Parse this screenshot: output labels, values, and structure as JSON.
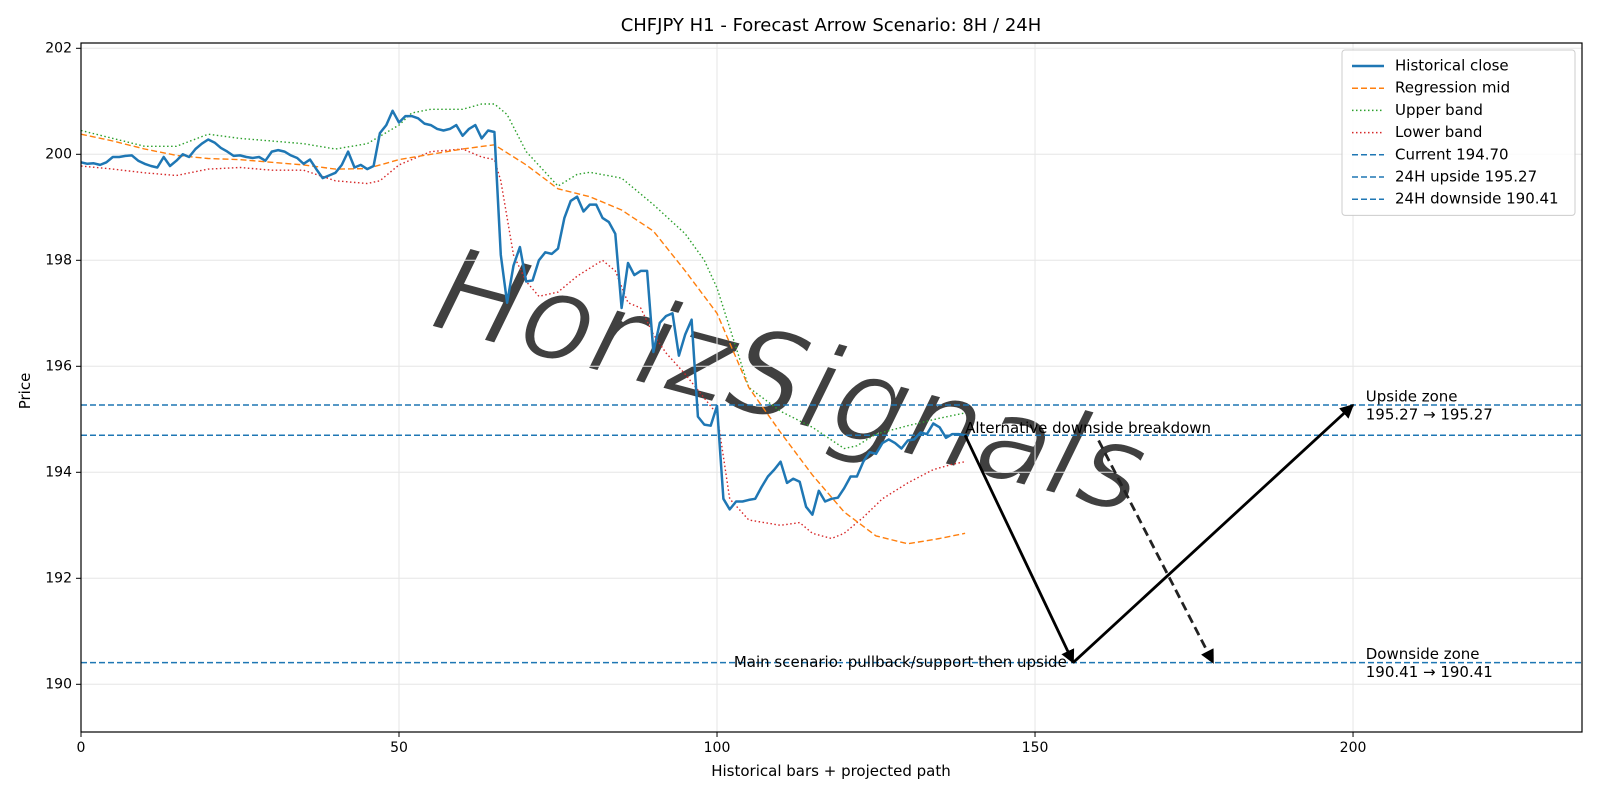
{
  "chart_data": {
    "type": "line",
    "title": "CHFJPY H1 - Forecast Arrow Scenario: 8H / 24H",
    "xlabel": "Historical bars + projected path",
    "ylabel": "Price",
    "xlim": [
      0,
      236
    ],
    "ylim": [
      189.1,
      202.1
    ],
    "xticks": [
      0,
      50,
      100,
      150,
      200
    ],
    "yticks": [
      190,
      192,
      194,
      196,
      198,
      200,
      202
    ],
    "grid": true,
    "legend_position": "top-right",
    "watermark": "HorizSignals",
    "series": [
      {
        "name": "Historical close",
        "color": "#1f77b4",
        "style": "solid",
        "x": [
          0,
          1,
          2,
          3,
          4,
          5,
          6,
          7,
          8,
          9,
          10,
          11,
          12,
          13,
          14,
          15,
          16,
          17,
          18,
          19,
          20,
          21,
          22,
          23,
          24,
          25,
          26,
          27,
          28,
          29,
          30,
          31,
          32,
          33,
          34,
          35,
          36,
          37,
          38,
          39,
          40,
          41,
          42,
          43,
          44,
          45,
          46,
          47,
          48,
          49,
          50,
          51,
          52,
          53,
          54,
          55,
          56,
          57,
          58,
          59,
          60,
          61,
          62,
          63,
          64,
          65,
          66,
          67,
          68,
          69,
          70,
          71,
          72,
          73,
          74,
          75,
          76,
          77,
          78,
          79,
          80,
          81,
          82,
          83,
          84,
          85,
          86,
          87,
          88,
          89,
          90,
          91,
          92,
          93,
          94,
          95,
          96,
          97,
          98,
          99,
          100,
          101,
          102,
          103,
          104,
          105,
          106,
          107,
          108,
          109,
          110,
          111,
          112,
          113,
          114,
          115,
          116,
          117,
          118,
          119,
          120,
          121,
          122,
          123,
          124,
          125,
          126,
          127,
          128,
          129,
          130,
          131,
          132,
          133,
          134,
          135,
          136,
          137,
          138,
          139
        ],
        "values": [
          199.85,
          199.82,
          199.83,
          199.8,
          199.85,
          199.95,
          199.95,
          199.97,
          199.98,
          199.88,
          199.82,
          199.78,
          199.75,
          199.95,
          199.78,
          199.88,
          200.0,
          199.95,
          200.1,
          200.2,
          200.28,
          200.22,
          200.12,
          200.05,
          199.97,
          199.98,
          199.95,
          199.93,
          199.95,
          199.88,
          200.05,
          200.08,
          200.05,
          199.98,
          199.93,
          199.82,
          199.9,
          199.72,
          199.55,
          199.6,
          199.65,
          199.8,
          200.05,
          199.75,
          199.8,
          199.72,
          199.78,
          200.4,
          200.55,
          200.82,
          200.6,
          200.72,
          200.72,
          200.68,
          200.58,
          200.55,
          200.48,
          200.45,
          200.48,
          200.55,
          200.35,
          200.48,
          200.55,
          200.3,
          200.45,
          200.42,
          198.1,
          197.2,
          197.9,
          198.25,
          197.6,
          197.62,
          198.0,
          198.15,
          198.12,
          198.22,
          198.8,
          199.12,
          199.2,
          198.92,
          199.05,
          199.05,
          198.8,
          198.72,
          198.5,
          197.1,
          197.95,
          197.72,
          197.8,
          197.8,
          196.27,
          196.82,
          196.95,
          197.0,
          196.2,
          196.6,
          196.88,
          195.05,
          194.9,
          194.88,
          195.25,
          193.5,
          193.3,
          193.45,
          193.45,
          193.48,
          193.5,
          193.72,
          193.92,
          194.05,
          194.2,
          193.8,
          193.88,
          193.82,
          193.35,
          193.2,
          193.65,
          193.45,
          193.5,
          193.52,
          193.7,
          193.92,
          193.92,
          194.2,
          194.38,
          194.35,
          194.55,
          194.62,
          194.55,
          194.45,
          194.6,
          194.62,
          194.75,
          194.72,
          194.92,
          194.85,
          194.65,
          194.72,
          194.72,
          194.7
        ]
      },
      {
        "name": "Regression mid",
        "color": "#ff7f0e",
        "style": "dashed",
        "x": [
          0,
          5,
          10,
          15,
          20,
          25,
          30,
          35,
          40,
          45,
          50,
          55,
          60,
          65,
          70,
          75,
          80,
          85,
          90,
          95,
          100,
          105,
          110,
          115,
          120,
          125,
          130,
          135,
          139
        ],
        "values": [
          200.38,
          200.25,
          200.1,
          199.98,
          199.92,
          199.9,
          199.85,
          199.8,
          199.72,
          199.73,
          199.9,
          200.0,
          200.1,
          200.18,
          199.8,
          199.35,
          199.2,
          198.95,
          198.55,
          197.8,
          197.0,
          195.6,
          194.75,
          193.95,
          193.25,
          192.8,
          192.65,
          192.75,
          192.85
        ]
      },
      {
        "name": "Upper band",
        "color": "#2ca02c",
        "style": "dotted",
        "x": [
          0,
          5,
          10,
          15,
          20,
          25,
          30,
          35,
          40,
          45,
          50,
          52,
          55,
          60,
          63,
          65,
          67,
          70,
          75,
          78,
          80,
          85,
          88,
          90,
          95,
          98,
          100,
          105,
          110,
          115,
          120,
          122,
          125,
          130,
          135,
          139
        ],
        "values": [
          200.45,
          200.3,
          200.15,
          200.15,
          200.38,
          200.3,
          200.25,
          200.2,
          200.1,
          200.2,
          200.55,
          200.78,
          200.85,
          200.85,
          200.95,
          200.95,
          200.75,
          200.05,
          199.4,
          199.62,
          199.66,
          199.55,
          199.25,
          199.05,
          198.5,
          198.0,
          197.48,
          195.6,
          195.15,
          194.85,
          194.45,
          194.5,
          194.72,
          194.88,
          195.02,
          195.12
        ]
      },
      {
        "name": "Lower band",
        "color": "#d62728",
        "style": "dotted",
        "x": [
          0,
          5,
          10,
          15,
          20,
          25,
          30,
          35,
          40,
          45,
          47,
          50,
          55,
          60,
          63,
          65,
          66,
          68,
          70,
          72,
          75,
          78,
          80,
          82,
          84,
          86,
          88,
          90,
          92,
          95,
          97,
          100,
          102,
          105,
          110,
          113,
          115,
          118,
          120,
          123,
          126,
          130,
          134,
          137,
          139
        ],
        "values": [
          199.78,
          199.72,
          199.65,
          199.6,
          199.72,
          199.75,
          199.7,
          199.7,
          199.5,
          199.45,
          199.5,
          199.8,
          200.05,
          200.1,
          199.95,
          199.9,
          199.5,
          198.1,
          197.6,
          197.32,
          197.4,
          197.7,
          197.85,
          198.0,
          197.8,
          197.2,
          197.1,
          196.6,
          196.25,
          195.85,
          195.55,
          195.1,
          193.5,
          193.1,
          193.0,
          193.05,
          192.85,
          192.75,
          192.85,
          193.15,
          193.5,
          193.8,
          194.05,
          194.15,
          194.2
        ]
      }
    ],
    "hlines": [
      {
        "name": "Current 194.70",
        "value": 194.7,
        "color": "#1f77b4"
      },
      {
        "name": "24H upside 195.27",
        "value": 195.27,
        "color": "#1f77b4"
      },
      {
        "name": "24H downside 190.41",
        "value": 190.41,
        "color": "#1f77b4"
      }
    ],
    "arrows": [
      {
        "name": "main-leg-1",
        "from": [
          139,
          194.7
        ],
        "to": [
          156,
          190.41
        ],
        "style": "solid"
      },
      {
        "name": "main-leg-2",
        "from": [
          156,
          190.41
        ],
        "to": [
          200,
          195.27
        ],
        "style": "solid"
      },
      {
        "name": "alternative",
        "from": [
          160,
          194.6
        ],
        "to": [
          178,
          190.41
        ],
        "style": "dashed"
      }
    ],
    "annotations": [
      {
        "text": "Alternative downside breakdown",
        "x": 139,
        "y": 194.83,
        "anchor": "start"
      },
      {
        "text": "Main scenario: pullback/support then upside",
        "x": 155,
        "y": 190.41,
        "anchor": "end"
      },
      {
        "text": "Upside zone",
        "x": 202,
        "y": 195.42,
        "anchor": "start"
      },
      {
        "text": "195.27 → 195.27",
        "x": 202,
        "y": 195.08,
        "anchor": "start"
      },
      {
        "text": "Downside zone",
        "x": 202,
        "y": 190.56,
        "anchor": "start"
      },
      {
        "text": "190.41 → 190.41",
        "x": 202,
        "y": 190.22,
        "anchor": "start"
      }
    ]
  }
}
